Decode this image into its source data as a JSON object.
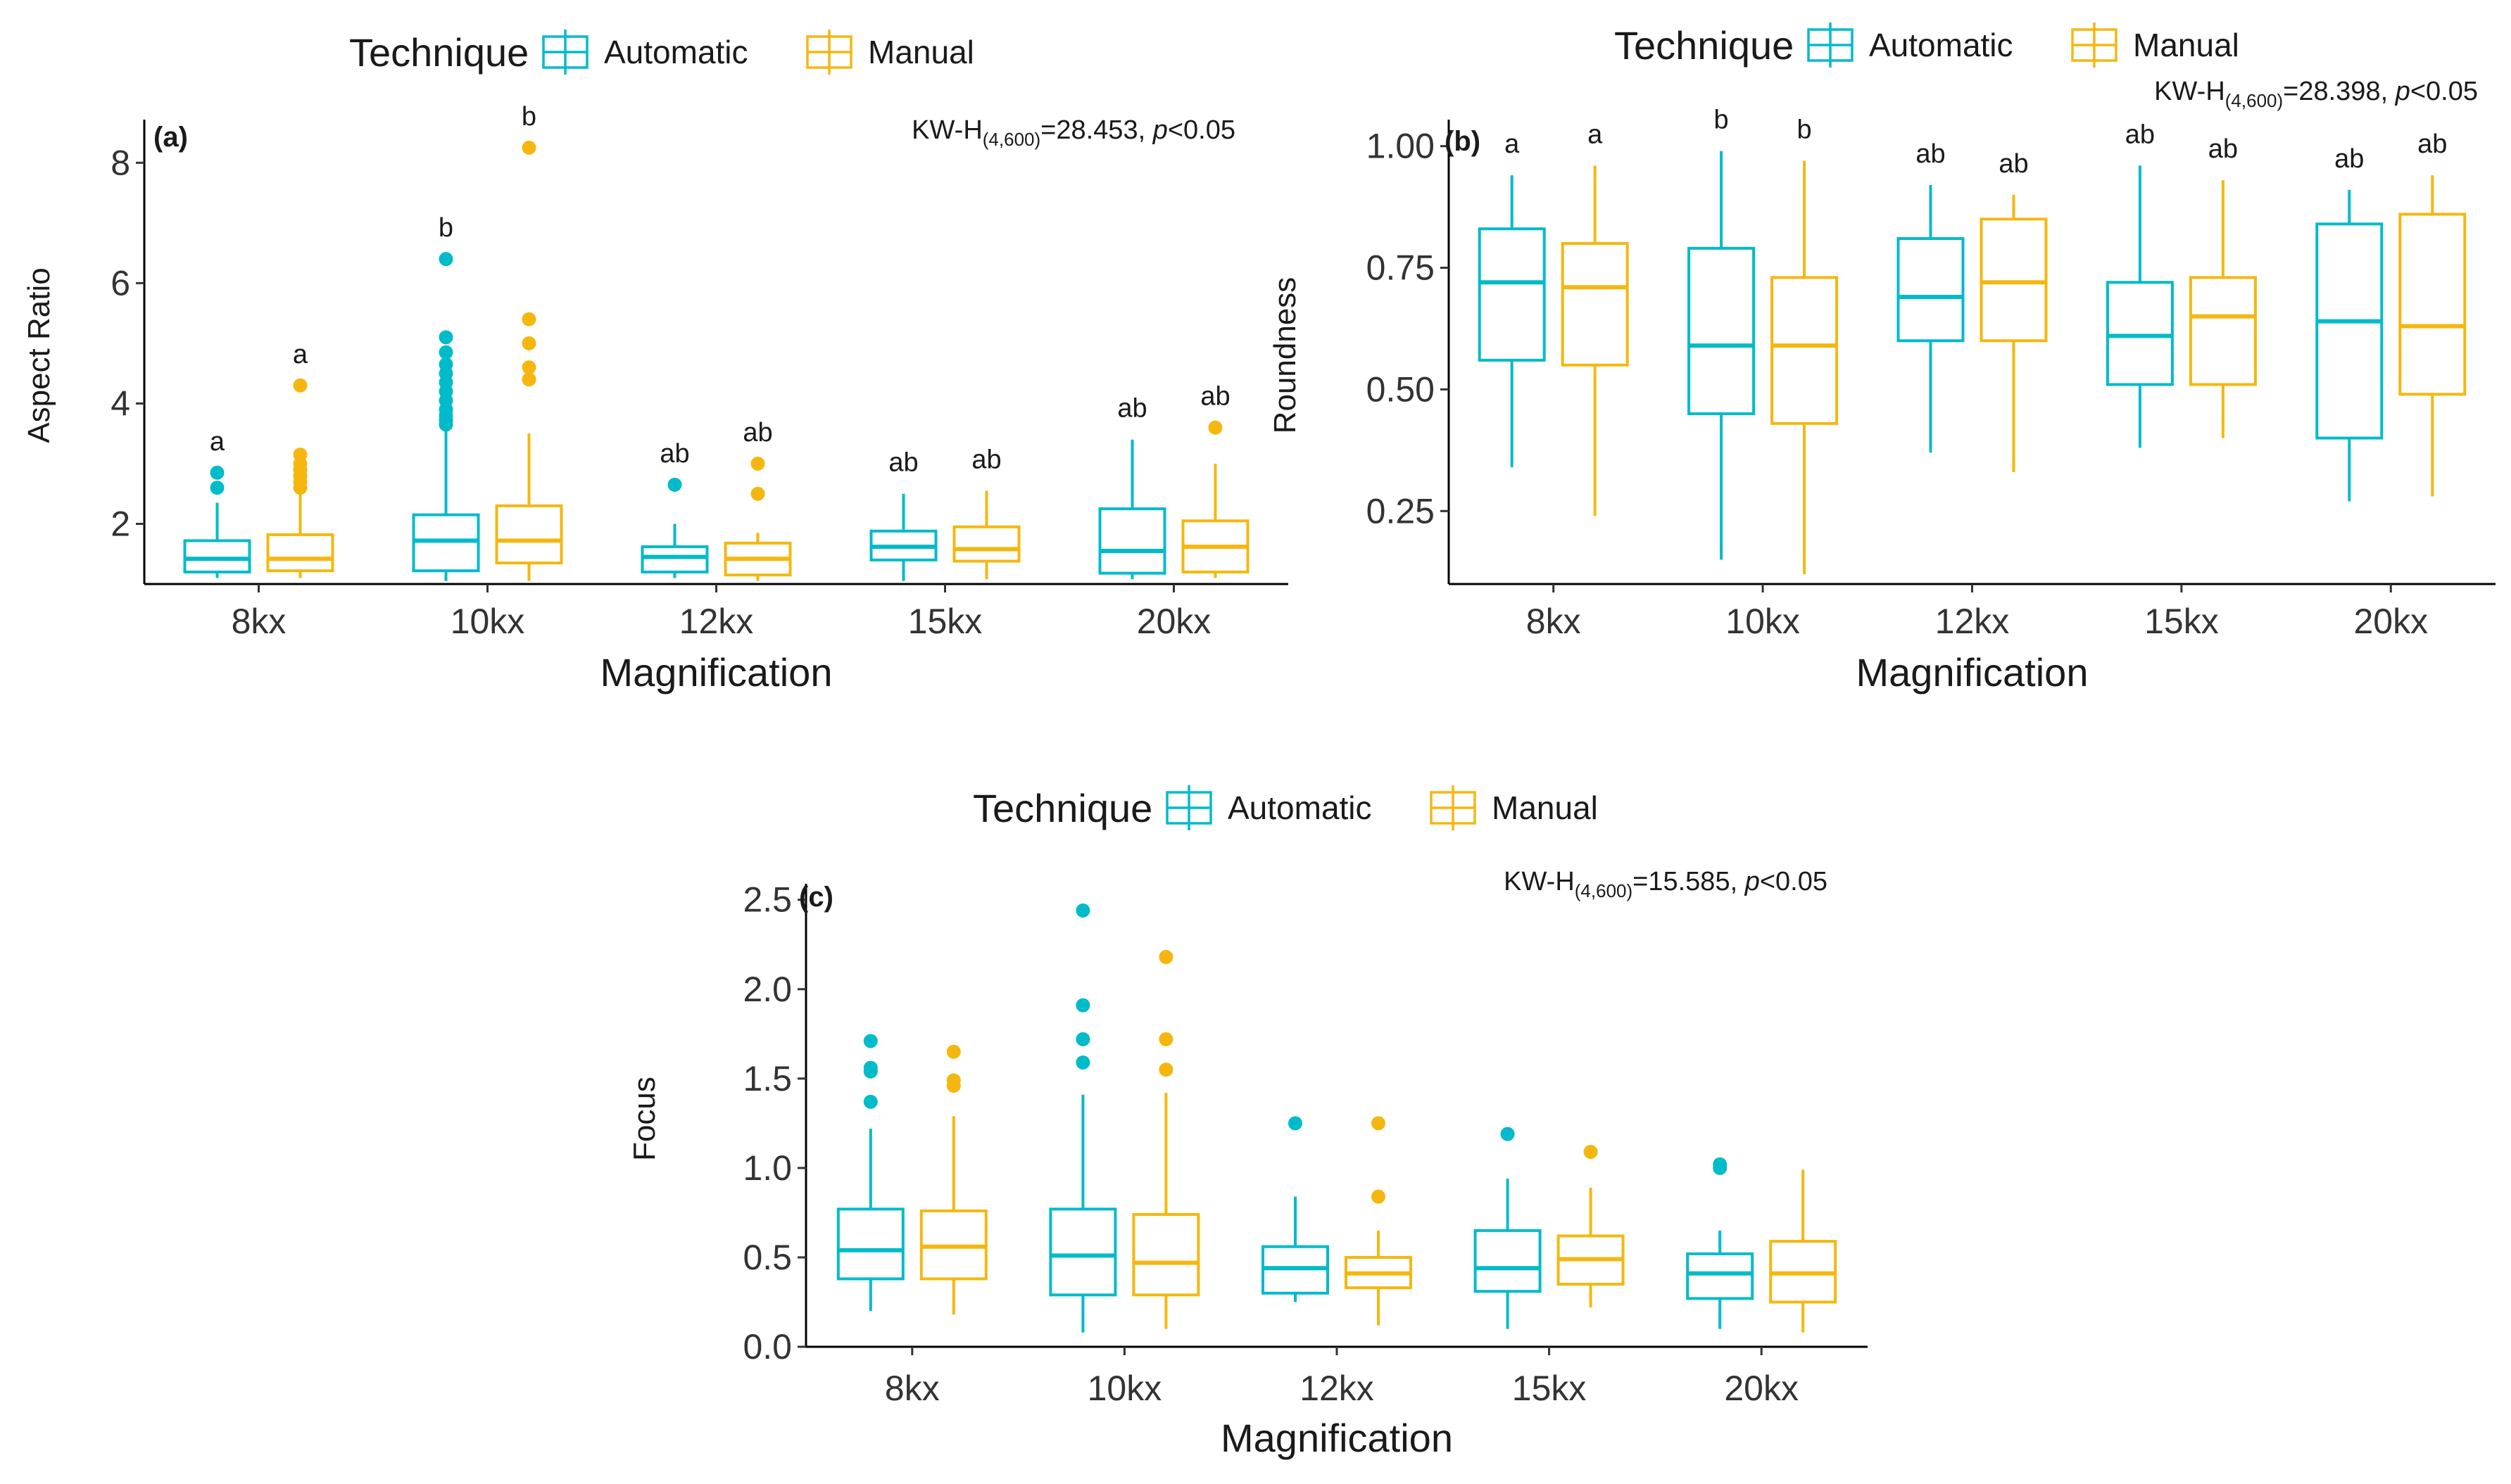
{
  "colors": {
    "automatic": "#00BBC9",
    "manual": "#F5B70F",
    "axis": "#000000",
    "text": "#1a1a1a"
  },
  "chart_data": [
    {
      "type": "box",
      "panel_label": "(a)",
      "title": "",
      "xlabel": "Magnification",
      "ylabel": "Aspect Ratio",
      "ylim": [
        1.0,
        8.6
      ],
      "yticks": [
        "2",
        "4",
        "6",
        "8"
      ],
      "ytick_values": [
        2,
        4,
        6,
        8
      ],
      "categories": [
        "8kx",
        "10kx",
        "12kx",
        "15kx",
        "20kx"
      ],
      "legend": {
        "title": "Technique",
        "entries": [
          "Automatic",
          "Manual"
        ],
        "position": "top"
      },
      "stat": {
        "prefix": "KW-H",
        "sub": "(4,600)",
        "value": "=28.453, ",
        "p": "p",
        "suffix": "<0.05"
      },
      "series": [
        {
          "name": "Automatic",
          "boxes": [
            {
              "lower": 1.1,
              "q1": 1.2,
              "median": 1.42,
              "q3": 1.72,
              "upper": 2.35,
              "outliers": [
                2.6,
                2.85
              ],
              "letter": "a"
            },
            {
              "lower": 1.05,
              "q1": 1.22,
              "median": 1.72,
              "q3": 2.15,
              "upper": 3.55,
              "outliers": [
                3.65,
                3.72,
                3.8,
                3.9,
                4.05,
                4.2,
                4.35,
                4.5,
                4.65,
                4.85,
                5.1,
                6.4
              ],
              "letter": "b"
            },
            {
              "lower": 1.1,
              "q1": 1.2,
              "median": 1.45,
              "q3": 1.62,
              "upper": 2.0,
              "outliers": [
                2.65
              ],
              "letter": "ab"
            },
            {
              "lower": 1.05,
              "q1": 1.4,
              "median": 1.62,
              "q3": 1.88,
              "upper": 2.5,
              "outliers": [],
              "letter": "ab"
            },
            {
              "lower": 1.08,
              "q1": 1.18,
              "median": 1.55,
              "q3": 2.25,
              "upper": 3.4,
              "outliers": [],
              "letter": "ab"
            }
          ]
        },
        {
          "name": "Manual",
          "boxes": [
            {
              "lower": 1.1,
              "q1": 1.22,
              "median": 1.42,
              "q3": 1.82,
              "upper": 2.5,
              "outliers": [
                2.6,
                2.7,
                2.8,
                2.9,
                3.0,
                3.15,
                4.3
              ],
              "letter": "a"
            },
            {
              "lower": 1.05,
              "q1": 1.35,
              "median": 1.72,
              "q3": 2.3,
              "upper": 3.5,
              "outliers": [
                4.4,
                4.6,
                5.0,
                5.4,
                8.25
              ],
              "letter": "b"
            },
            {
              "lower": 1.05,
              "q1": 1.15,
              "median": 1.42,
              "q3": 1.68,
              "upper": 1.85,
              "outliers": [
                2.5,
                3.0
              ],
              "letter": "ab"
            },
            {
              "lower": 1.08,
              "q1": 1.38,
              "median": 1.58,
              "q3": 1.95,
              "upper": 2.55,
              "outliers": [],
              "letter": "ab"
            },
            {
              "lower": 1.1,
              "q1": 1.2,
              "median": 1.62,
              "q3": 2.05,
              "upper": 3.0,
              "outliers": [
                3.6
              ],
              "letter": "ab"
            }
          ]
        }
      ]
    },
    {
      "type": "box",
      "panel_label": "(b)",
      "title": "",
      "xlabel": "Magnification",
      "ylabel": "Roundness",
      "ylim": [
        0.1,
        1.04
      ],
      "yticks": [
        "0.25",
        "0.50",
        "0.75",
        "1.00"
      ],
      "ytick_values": [
        0.25,
        0.5,
        0.75,
        1.0
      ],
      "categories": [
        "8kx",
        "10kx",
        "12kx",
        "15kx",
        "20kx"
      ],
      "legend": {
        "title": "Technique",
        "entries": [
          "Automatic",
          "Manual"
        ],
        "position": "top"
      },
      "stat": {
        "prefix": "KW-H",
        "sub": "(4,600)",
        "value": "=28.398, ",
        "p": "p",
        "suffix": "<0.05"
      },
      "series": [
        {
          "name": "Automatic",
          "boxes": [
            {
              "lower": 0.34,
              "q1": 0.56,
              "median": 0.72,
              "q3": 0.83,
              "upper": 0.94,
              "outliers": [],
              "letter": "a"
            },
            {
              "lower": 0.15,
              "q1": 0.45,
              "median": 0.59,
              "q3": 0.79,
              "upper": 0.99,
              "outliers": [],
              "letter": "b"
            },
            {
              "lower": 0.37,
              "q1": 0.6,
              "median": 0.69,
              "q3": 0.81,
              "upper": 0.92,
              "outliers": [],
              "letter": "ab"
            },
            {
              "lower": 0.38,
              "q1": 0.51,
              "median": 0.61,
              "q3": 0.72,
              "upper": 0.96,
              "outliers": [],
              "letter": "ab"
            },
            {
              "lower": 0.27,
              "q1": 0.4,
              "median": 0.64,
              "q3": 0.84,
              "upper": 0.91,
              "outliers": [],
              "letter": "ab"
            }
          ]
        },
        {
          "name": "Manual",
          "boxes": [
            {
              "lower": 0.24,
              "q1": 0.55,
              "median": 0.71,
              "q3": 0.8,
              "upper": 0.96,
              "outliers": [],
              "letter": "a"
            },
            {
              "lower": 0.12,
              "q1": 0.43,
              "median": 0.59,
              "q3": 0.73,
              "upper": 0.97,
              "outliers": [],
              "letter": "b"
            },
            {
              "lower": 0.33,
              "q1": 0.6,
              "median": 0.72,
              "q3": 0.85,
              "upper": 0.9,
              "outliers": [],
              "letter": "ab"
            },
            {
              "lower": 0.4,
              "q1": 0.51,
              "median": 0.65,
              "q3": 0.73,
              "upper": 0.93,
              "outliers": [],
              "letter": "ab"
            },
            {
              "lower": 0.28,
              "q1": 0.49,
              "median": 0.63,
              "q3": 0.86,
              "upper": 0.94,
              "outliers": [],
              "letter": "ab"
            }
          ]
        }
      ]
    },
    {
      "type": "box",
      "panel_label": "(c)",
      "title": "",
      "xlabel": "Magnification",
      "ylabel": "Focus",
      "ylim": [
        0.0,
        2.55
      ],
      "yticks": [
        "0.0",
        "0.5",
        "1.0",
        "1.5",
        "2.0",
        "2.5"
      ],
      "ytick_values": [
        0,
        0.5,
        1.0,
        1.5,
        2.0,
        2.5
      ],
      "categories": [
        "8kx",
        "10kx",
        "12kx",
        "15kx",
        "20kx"
      ],
      "legend": {
        "title": "Technique",
        "entries": [
          "Automatic",
          "Manual"
        ],
        "position": "top"
      },
      "stat": {
        "prefix": "KW-H",
        "sub": "(4,600)",
        "value": "=15.585, ",
        "p": "p",
        "suffix": "<0.05"
      },
      "series": [
        {
          "name": "Automatic",
          "boxes": [
            {
              "lower": 0.2,
              "q1": 0.38,
              "median": 0.54,
              "q3": 0.77,
              "upper": 1.22,
              "outliers": [
                1.37,
                1.54,
                1.56,
                1.71
              ],
              "letter": ""
            },
            {
              "lower": 0.08,
              "q1": 0.29,
              "median": 0.51,
              "q3": 0.77,
              "upper": 1.41,
              "outliers": [
                1.59,
                1.72,
                1.91,
                2.44
              ],
              "letter": ""
            },
            {
              "lower": 0.25,
              "q1": 0.3,
              "median": 0.44,
              "q3": 0.56,
              "upper": 0.84,
              "outliers": [
                1.25
              ],
              "letter": ""
            },
            {
              "lower": 0.1,
              "q1": 0.31,
              "median": 0.44,
              "q3": 0.65,
              "upper": 0.94,
              "outliers": [
                1.19
              ],
              "letter": ""
            },
            {
              "lower": 0.1,
              "q1": 0.27,
              "median": 0.41,
              "q3": 0.52,
              "upper": 0.65,
              "outliers": [
                1.0,
                1.02
              ],
              "letter": ""
            }
          ]
        },
        {
          "name": "Manual",
          "boxes": [
            {
              "lower": 0.18,
              "q1": 0.38,
              "median": 0.56,
              "q3": 0.76,
              "upper": 1.29,
              "outliers": [
                1.46,
                1.49,
                1.65
              ],
              "letter": ""
            },
            {
              "lower": 0.1,
              "q1": 0.29,
              "median": 0.47,
              "q3": 0.74,
              "upper": 1.42,
              "outliers": [
                1.55,
                1.72,
                2.18
              ],
              "letter": ""
            },
            {
              "lower": 0.12,
              "q1": 0.33,
              "median": 0.41,
              "q3": 0.5,
              "upper": 0.65,
              "outliers": [
                0.84,
                1.25
              ],
              "letter": ""
            },
            {
              "lower": 0.22,
              "q1": 0.35,
              "median": 0.49,
              "q3": 0.62,
              "upper": 0.89,
              "outliers": [
                1.09
              ],
              "letter": ""
            },
            {
              "lower": 0.08,
              "q1": 0.25,
              "median": 0.41,
              "q3": 0.59,
              "upper": 0.99,
              "outliers": [],
              "letter": ""
            }
          ]
        }
      ]
    }
  ]
}
